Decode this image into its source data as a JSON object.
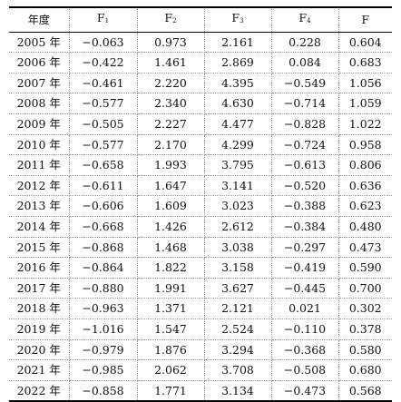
{
  "table": {
    "headers": [
      {
        "key": "year",
        "text": "年度",
        "sub": ""
      },
      {
        "key": "f1",
        "text": "F",
        "sub": "1"
      },
      {
        "key": "f2",
        "text": "F",
        "sub": "2"
      },
      {
        "key": "f3",
        "text": "F",
        "sub": "3"
      },
      {
        "key": "f4",
        "text": "F",
        "sub": "4"
      },
      {
        "key": "f",
        "text": "F",
        "sub": ""
      }
    ],
    "rows": [
      {
        "year": "2005 年",
        "f1": "−0.063",
        "f2": "0.973",
        "f3": "2.161",
        "f4": "0.228",
        "f": "0.604"
      },
      {
        "year": "2006 年",
        "f1": "−0.422",
        "f2": "1.461",
        "f3": "2.869",
        "f4": "0.084",
        "f": "0.683"
      },
      {
        "year": "2007 年",
        "f1": "−0.461",
        "f2": "2.220",
        "f3": "4.395",
        "f4": "−0.549",
        "f": "1.056"
      },
      {
        "year": "2008 年",
        "f1": "−0.577",
        "f2": "2.340",
        "f3": "4.630",
        "f4": "−0.714",
        "f": "1.059"
      },
      {
        "year": "2009 年",
        "f1": "−0.505",
        "f2": "2.227",
        "f3": "4.477",
        "f4": "−0.828",
        "f": "1.022"
      },
      {
        "year": "2010 年",
        "f1": "−0.577",
        "f2": "2.170",
        "f3": "4.299",
        "f4": "−0.724",
        "f": "0.958"
      },
      {
        "year": "2011 年",
        "f1": "−0.658",
        "f2": "1.993",
        "f3": "3.795",
        "f4": "−0.613",
        "f": "0.806"
      },
      {
        "year": "2012 年",
        "f1": "−0.611",
        "f2": "1.647",
        "f3": "3.141",
        "f4": "−0.520",
        "f": "0.636"
      },
      {
        "year": "2013 年",
        "f1": "−0.606",
        "f2": "1.609",
        "f3": "3.023",
        "f4": "−0.388",
        "f": "0.623"
      },
      {
        "year": "2014 年",
        "f1": "−0.668",
        "f2": "1.426",
        "f3": "2.612",
        "f4": "−0.384",
        "f": "0.480"
      },
      {
        "year": "2015 年",
        "f1": "−0.868",
        "f2": "1.468",
        "f3": "3.038",
        "f4": "−0.297",
        "f": "0.473"
      },
      {
        "year": "2016 年",
        "f1": "−0.864",
        "f2": "1.822",
        "f3": "3.158",
        "f4": "−0.419",
        "f": "0.590"
      },
      {
        "year": "2017 年",
        "f1": "−0.880",
        "f2": "1.991",
        "f3": "3.627",
        "f4": "−0.445",
        "f": "0.700"
      },
      {
        "year": "2018 年",
        "f1": "−0.963",
        "f2": "1.371",
        "f3": "2.121",
        "f4": "0.021",
        "f": "0.302"
      },
      {
        "year": "2019 年",
        "f1": "−1.016",
        "f2": "1.547",
        "f3": "2.524",
        "f4": "−0.110",
        "f": "0.378"
      },
      {
        "year": "2020 年",
        "f1": "−0.979",
        "f2": "1.876",
        "f3": "3.294",
        "f4": "−0.368",
        "f": "0.580"
      },
      {
        "year": "2021 年",
        "f1": "−0.985",
        "f2": "2.062",
        "f3": "3.708",
        "f4": "−0.508",
        "f": "0.680"
      },
      {
        "year": "2022 年",
        "f1": "−0.858",
        "f2": "1.771",
        "f3": "3.134",
        "f4": "−0.473",
        "f": "0.568"
      }
    ]
  }
}
